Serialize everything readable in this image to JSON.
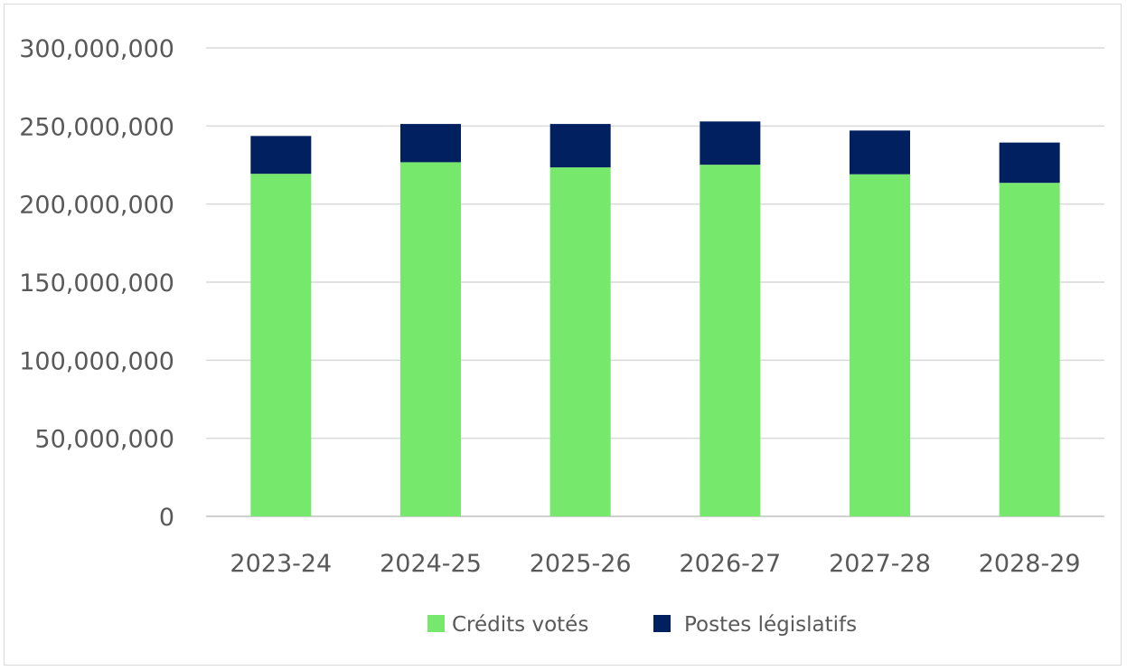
{
  "chart_data": {
    "type": "stacked-bar",
    "categories": [
      "2023-24",
      "2024-25",
      "2025-26",
      "2026-27",
      "2027-28",
      "2028-29"
    ],
    "series": [
      {
        "name": "Crédits votés",
        "color": "#76e86c",
        "values": [
          219400000,
          226800000,
          223500000,
          225200000,
          219100000,
          213600000
        ]
      },
      {
        "name": "Postes législatifs",
        "color": "#002060",
        "values": [
          24200000,
          24500000,
          27800000,
          27700000,
          28000000,
          25800000
        ]
      }
    ],
    "ylim": [
      0,
      300000000
    ],
    "yticks": [
      "0",
      "50,000,000",
      "100,000,000",
      "150,000,000",
      "200,000,000",
      "250,000,000",
      "300,000,000"
    ],
    "grid": true,
    "legend": "bottom"
  }
}
